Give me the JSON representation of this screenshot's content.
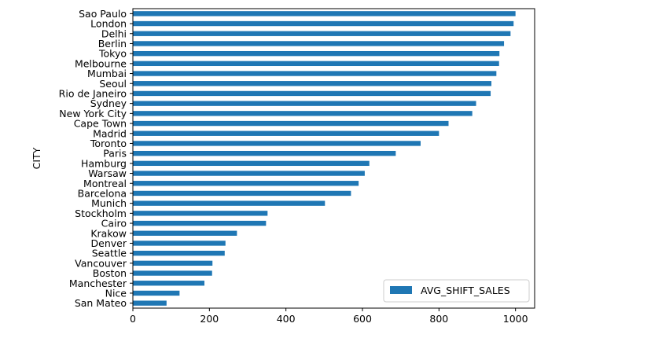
{
  "chart_data": {
    "type": "bar",
    "orientation": "horizontal",
    "categories": [
      "Sao Paulo",
      "London",
      "Delhi",
      "Berlin",
      "Tokyo",
      "Melbourne",
      "Mumbai",
      "Seoul",
      "Rio de Janeiro",
      "Sydney",
      "New York City",
      "Cape Town",
      "Madrid",
      "Toronto",
      "Paris",
      "Hamburg",
      "Warsaw",
      "Montreal",
      "Barcelona",
      "Munich",
      "Stockholm",
      "Cairo",
      "Krakow",
      "Denver",
      "Seattle",
      "Vancouver",
      "Boston",
      "Manchester",
      "Nice",
      "San Mateo"
    ],
    "series": [
      {
        "name": "AVG_SHIFT_SALES",
        "values": [
          1000,
          995,
          987,
          970,
          958,
          957,
          950,
          937,
          935,
          897,
          887,
          825,
          800,
          752,
          687,
          618,
          606,
          590,
          570,
          502,
          352,
          348,
          272,
          242,
          240,
          208,
          207,
          187,
          122,
          88
        ]
      }
    ],
    "xlabel": "",
    "ylabel": "CITY",
    "xlim": [
      0,
      1050
    ],
    "xticks": [
      0,
      200,
      400,
      600,
      800,
      1000
    ],
    "grid": false,
    "legend_position": "lower-right",
    "colors": {
      "bar": "#1f77b4"
    }
  }
}
